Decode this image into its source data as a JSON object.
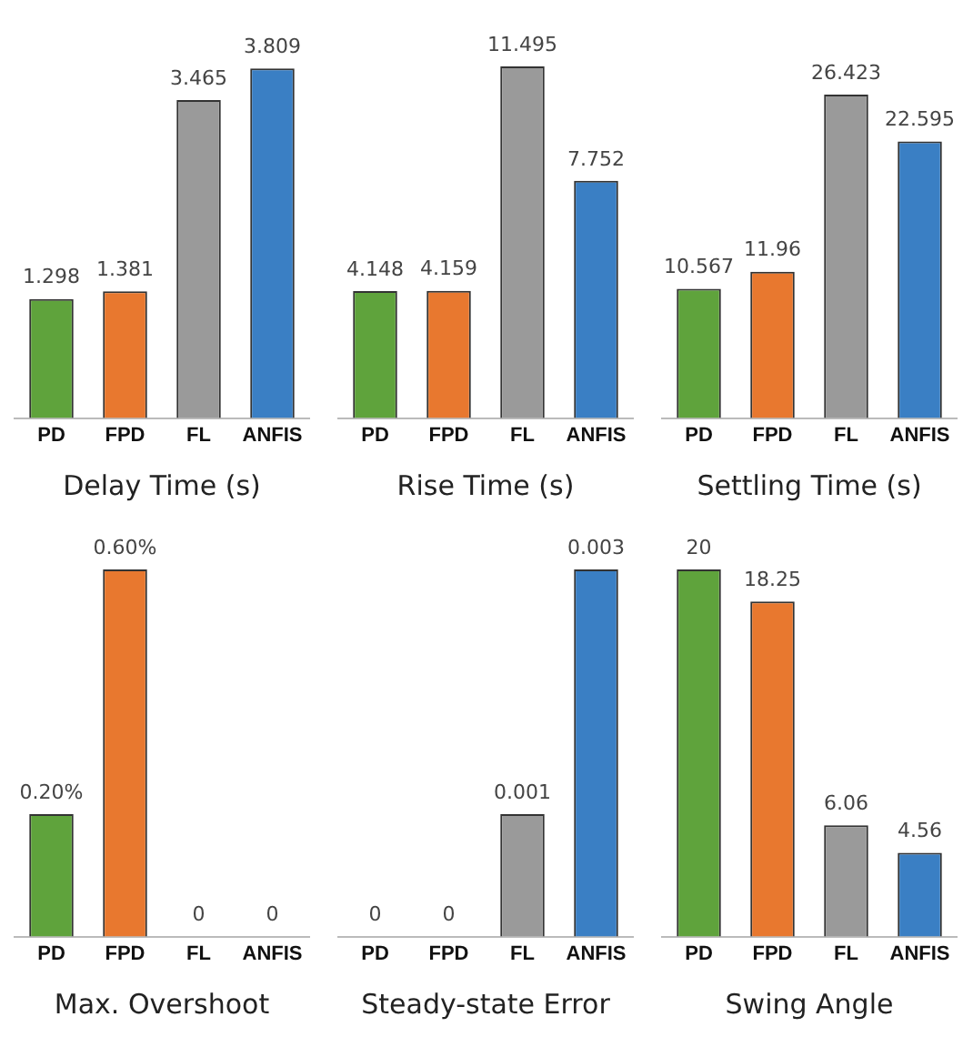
{
  "chart_data": [
    {
      "type": "bar",
      "xlabel": "Delay Time (s)",
      "categories": [
        "PD",
        "FPD",
        "FL",
        "ANFIS"
      ],
      "values": [
        1.298,
        1.381,
        3.465,
        3.809
      ],
      "colors": [
        "#5fa33c",
        "#e8782f",
        "#9a9a9a",
        "#3a7fc4"
      ],
      "data_labels": true
    },
    {
      "type": "bar",
      "xlabel": "Rise Time (s)",
      "categories": [
        "PD",
        "FPD",
        "FL",
        "ANFIS"
      ],
      "values": [
        4.148,
        4.159,
        11.495,
        7.752
      ],
      "colors": [
        "#5fa33c",
        "#e8782f",
        "#9a9a9a",
        "#3a7fc4"
      ],
      "data_labels": true
    },
    {
      "type": "bar",
      "xlabel": "Settling Time (s)",
      "categories": [
        "PD",
        "FPD",
        "FL",
        "ANFIS"
      ],
      "values": [
        10.567,
        11.96,
        26.423,
        22.595
      ],
      "colors": [
        "#5fa33c",
        "#e8782f",
        "#9a9a9a",
        "#3a7fc4"
      ],
      "data_labels": true
    },
    {
      "type": "bar",
      "xlabel": "Max. Overshoot",
      "categories": [
        "PD",
        "FPD",
        "FL",
        "ANFIS"
      ],
      "values": [
        0.2,
        0.6,
        0,
        0
      ],
      "value_labels": [
        "0.20%",
        "0.60%",
        "0",
        "0"
      ],
      "colors": [
        "#5fa33c",
        "#e8782f",
        "#9a9a9a",
        "#3a7fc4"
      ]
    },
    {
      "type": "bar",
      "xlabel": "Steady-state Error",
      "categories": [
        "PD",
        "FPD",
        "FL",
        "ANFIS"
      ],
      "values": [
        0,
        0,
        0.001,
        0.003
      ],
      "colors": [
        "#5fa33c",
        "#e8782f",
        "#9a9a9a",
        "#3a7fc4"
      ],
      "data_labels": true
    },
    {
      "type": "bar",
      "xlabel": "Swing Angle",
      "categories": [
        "PD",
        "FPD",
        "FL",
        "ANFIS"
      ],
      "values": [
        20,
        18.25,
        6.06,
        4.56
      ],
      "colors": [
        "#5fa33c",
        "#e8782f",
        "#9a9a9a",
        "#3a7fc4"
      ],
      "data_labels": true
    }
  ]
}
